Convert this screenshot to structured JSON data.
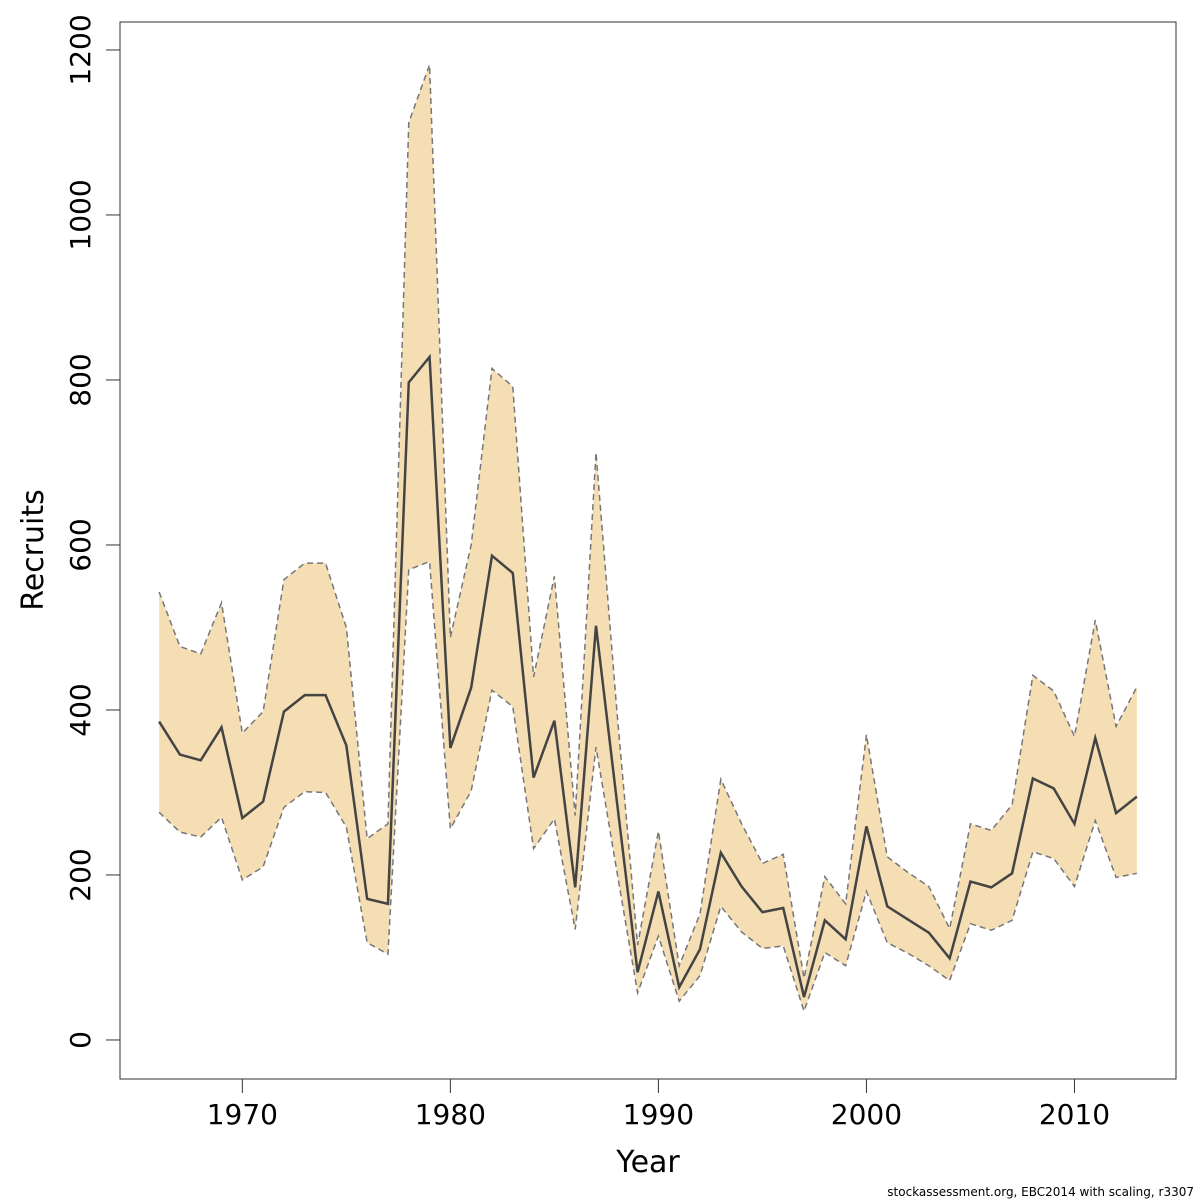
{
  "chart_data": {
    "type": "line",
    "xlabel": "Year",
    "ylabel": "Recruits",
    "footnote": "stockassessment.org, EBC2014  with  scaling, r3307",
    "x": [
      1966,
      1967,
      1968,
      1969,
      1970,
      1971,
      1972,
      1973,
      1974,
      1975,
      1976,
      1977,
      1978,
      1979,
      1980,
      1981,
      1982,
      1983,
      1984,
      1985,
      1986,
      1987,
      1988,
      1989,
      1990,
      1991,
      1992,
      1993,
      1994,
      1995,
      1996,
      1997,
      1998,
      1999,
      2000,
      2001,
      2002,
      2003,
      2004,
      2005,
      2006,
      2007,
      2008,
      2009,
      2010,
      2011,
      2012,
      2013
    ],
    "values": [
      386,
      346,
      339,
      379,
      269,
      289,
      398,
      418,
      418,
      357,
      171,
      165,
      797,
      828,
      354,
      427,
      587,
      566,
      318,
      387,
      185,
      502,
      290,
      82,
      180,
      64,
      110,
      227,
      186,
      155,
      160,
      52,
      145,
      122,
      259,
      162,
      146,
      130,
      99,
      192,
      185,
      202,
      317,
      305,
      262,
      366,
      275,
      295
    ],
    "upper": [
      543,
      477,
      468,
      530,
      372,
      398,
      558,
      578,
      578,
      500,
      244,
      262,
      1112,
      1182,
      488,
      600,
      814,
      792,
      440,
      562,
      272,
      712,
      400,
      115,
      253,
      90,
      153,
      316,
      262,
      214,
      225,
      75,
      198,
      165,
      370,
      222,
      203,
      186,
      135,
      262,
      254,
      285,
      442,
      423,
      368,
      509,
      380,
      428
    ],
    "lower": [
      276,
      252,
      246,
      270,
      194,
      210,
      282,
      301,
      300,
      258,
      118,
      104,
      570,
      580,
      256,
      302,
      424,
      404,
      232,
      268,
      134,
      355,
      205,
      57,
      126,
      47,
      78,
      162,
      131,
      111,
      114,
      35,
      106,
      90,
      180,
      118,
      105,
      90,
      72,
      141,
      133,
      145,
      228,
      220,
      186,
      266,
      197,
      202
    ],
    "color": "#444444",
    "band_color": "#f5deb3",
    "band_edge_color": "#777777",
    "xlim": [
      1964.12,
      2014.88
    ],
    "ylim": [
      -47.3,
      1233.9
    ],
    "xticks": [
      1970,
      1980,
      1990,
      2000,
      2010
    ],
    "yticks": [
      0,
      200,
      400,
      600,
      800,
      1000,
      1200
    ]
  }
}
